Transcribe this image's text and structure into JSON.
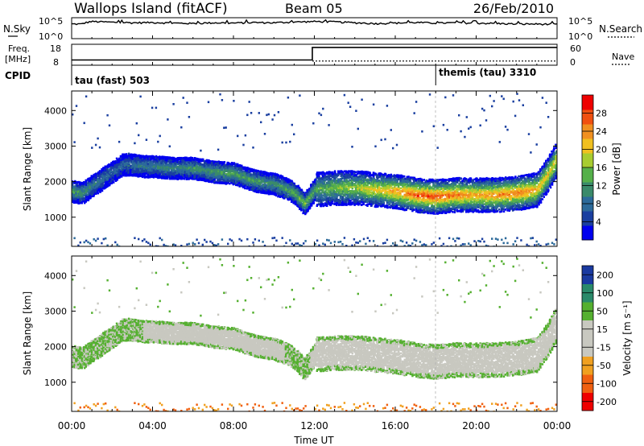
{
  "header": {
    "station": "Wallops Island (fitACF)",
    "beam": "Beam 05",
    "date": "26/Feb/2010"
  },
  "noise_panel": {
    "left_label": "N.Sky",
    "left_ticks": [
      "10^5",
      "10^0"
    ],
    "right_label": "N.Search",
    "right_ticks": [
      "10^5",
      "10^0"
    ]
  },
  "freq_panel": {
    "left_label_1": "Freq.",
    "left_label_2": "[MHz]",
    "left_ticks": [
      "18",
      "8"
    ],
    "right_label": "Nave",
    "right_ticks": [
      "60",
      "0"
    ]
  },
  "cpid_panel": {
    "label": "CPID",
    "modes": [
      {
        "name": "tau (fast) 503",
        "start_hour": 0
      },
      {
        "name": "themis (tau) 3310",
        "start_hour": 18
      }
    ]
  },
  "colors": {
    "power_scale": [
      "#0000ee",
      "#1a3fa0",
      "#2c6a9a",
      "#3a8a6a",
      "#55b04a",
      "#a8cc30",
      "#f0c020",
      "#f09020",
      "#f05010",
      "#ee0000"
    ],
    "velocity_scale": [
      "#ee0000",
      "#f06010",
      "#f0a020",
      "#c8c8c0",
      "#c8c8c0",
      "#55b030",
      "#2a8a6a",
      "#1a3aa0"
    ],
    "ground_scatter": "#c8c8c0"
  },
  "power_colorbar": {
    "label": "Power [dB]",
    "ticks": [
      "28",
      "24",
      "20",
      "16",
      "12",
      "8",
      "4"
    ]
  },
  "velocity_colorbar": {
    "label": "Velocity [m s⁻¹]",
    "ticks": [
      "200",
      "100",
      "50",
      "15",
      "-15",
      "-50",
      "-100",
      "-200"
    ]
  },
  "chart_data": [
    {
      "type": "line",
      "title": "N.Sky / N.Search",
      "x_range_hours": [
        0,
        24
      ],
      "yscale": "log",
      "ylim": [
        1,
        100000
      ],
      "series": [
        {
          "name": "N.Sky",
          "x": [
            0,
            0.5,
            1,
            2,
            3,
            4,
            5,
            6,
            7,
            8,
            9,
            10,
            11,
            12,
            13,
            14,
            15,
            16,
            17,
            18,
            19,
            20,
            21,
            22,
            23,
            24
          ],
          "y": [
            3000,
            3000,
            12000,
            8000,
            6000,
            7000,
            5000,
            4000,
            6000,
            5000,
            7000,
            6000,
            9000,
            12000,
            10000,
            6000,
            4000,
            5000,
            7000,
            5000,
            6000,
            5000,
            4000,
            3000,
            3000,
            2500
          ]
        }
      ]
    },
    {
      "type": "line",
      "title": "Freq. / Nave",
      "x_range_hours": [
        0,
        24
      ],
      "ylim_freq_mhz": [
        8,
        18
      ],
      "ylim_nave": [
        0,
        60
      ],
      "series": [
        {
          "name": "Freq.",
          "x": [
            0,
            11.9,
            11.9,
            24
          ],
          "y": [
            10.5,
            10.5,
            16.5,
            16.5
          ]
        },
        {
          "name": "Nave",
          "x": [
            11.9,
            24
          ],
          "y": [
            12,
            12
          ]
        }
      ]
    },
    {
      "type": "heatmap",
      "title": "Power",
      "xlabel": "Time UT",
      "ylabel": "Slant Range [km]",
      "x_ticks": [
        "00:00",
        "04:00",
        "08:00",
        "12:00",
        "16:00",
        "20:00",
        "00:00"
      ],
      "y_ticks": [
        1000,
        2000,
        3000,
        4000
      ],
      "ylim": [
        180,
        4550
      ],
      "zlabel": "Power [dB]",
      "zlim": [
        0,
        32
      ],
      "ridge_km": [
        [
          0,
          1750
        ],
        [
          0.5,
          1700
        ],
        [
          1.0,
          1900
        ],
        [
          1.5,
          2100
        ],
        [
          2.0,
          2300
        ],
        [
          2.5,
          2500
        ],
        [
          3.0,
          2500
        ],
        [
          3.5,
          2450
        ],
        [
          4.0,
          2450
        ],
        [
          5.0,
          2400
        ],
        [
          6.0,
          2400
        ],
        [
          7.0,
          2300
        ],
        [
          8.0,
          2250
        ],
        [
          9.0,
          2050
        ],
        [
          10.0,
          1950
        ],
        [
          10.5,
          1850
        ],
        [
          11.0,
          1700
        ],
        [
          11.5,
          1400
        ],
        [
          12.0,
          1800
        ],
        [
          13.0,
          1850
        ],
        [
          14.0,
          1850
        ],
        [
          15.0,
          1800
        ],
        [
          16.0,
          1750
        ],
        [
          17.0,
          1650
        ],
        [
          18.0,
          1600
        ],
        [
          19.0,
          1650
        ],
        [
          20.0,
          1650
        ],
        [
          21.0,
          1650
        ],
        [
          22.0,
          1700
        ],
        [
          23.0,
          1800
        ],
        [
          23.5,
          2200
        ],
        [
          24.0,
          2700
        ]
      ],
      "ridge_power_db": [
        [
          0,
          14
        ],
        [
          1,
          10
        ],
        [
          2,
          8
        ],
        [
          4,
          10
        ],
        [
          6,
          12
        ],
        [
          8,
          14
        ],
        [
          10,
          12
        ],
        [
          11.5,
          16
        ],
        [
          12,
          14
        ],
        [
          14,
          18
        ],
        [
          16,
          24
        ],
        [
          17,
          28
        ],
        [
          18,
          28
        ],
        [
          20,
          24
        ],
        [
          22,
          26
        ],
        [
          24,
          20
        ]
      ]
    },
    {
      "type": "heatmap",
      "title": "Velocity",
      "xlabel": "Time UT",
      "ylabel": "Slant Range [km]",
      "x_ticks": [
        "00:00",
        "04:00",
        "08:00",
        "12:00",
        "16:00",
        "20:00",
        "00:00"
      ],
      "y_ticks": [
        1000,
        2000,
        3000,
        4000
      ],
      "ylim": [
        180,
        4550
      ],
      "zlabel": "Velocity [m s⁻¹]",
      "zlim": [
        -250,
        250
      ],
      "dominant_value": "ground scatter (-15 to 15 m/s)"
    }
  ]
}
